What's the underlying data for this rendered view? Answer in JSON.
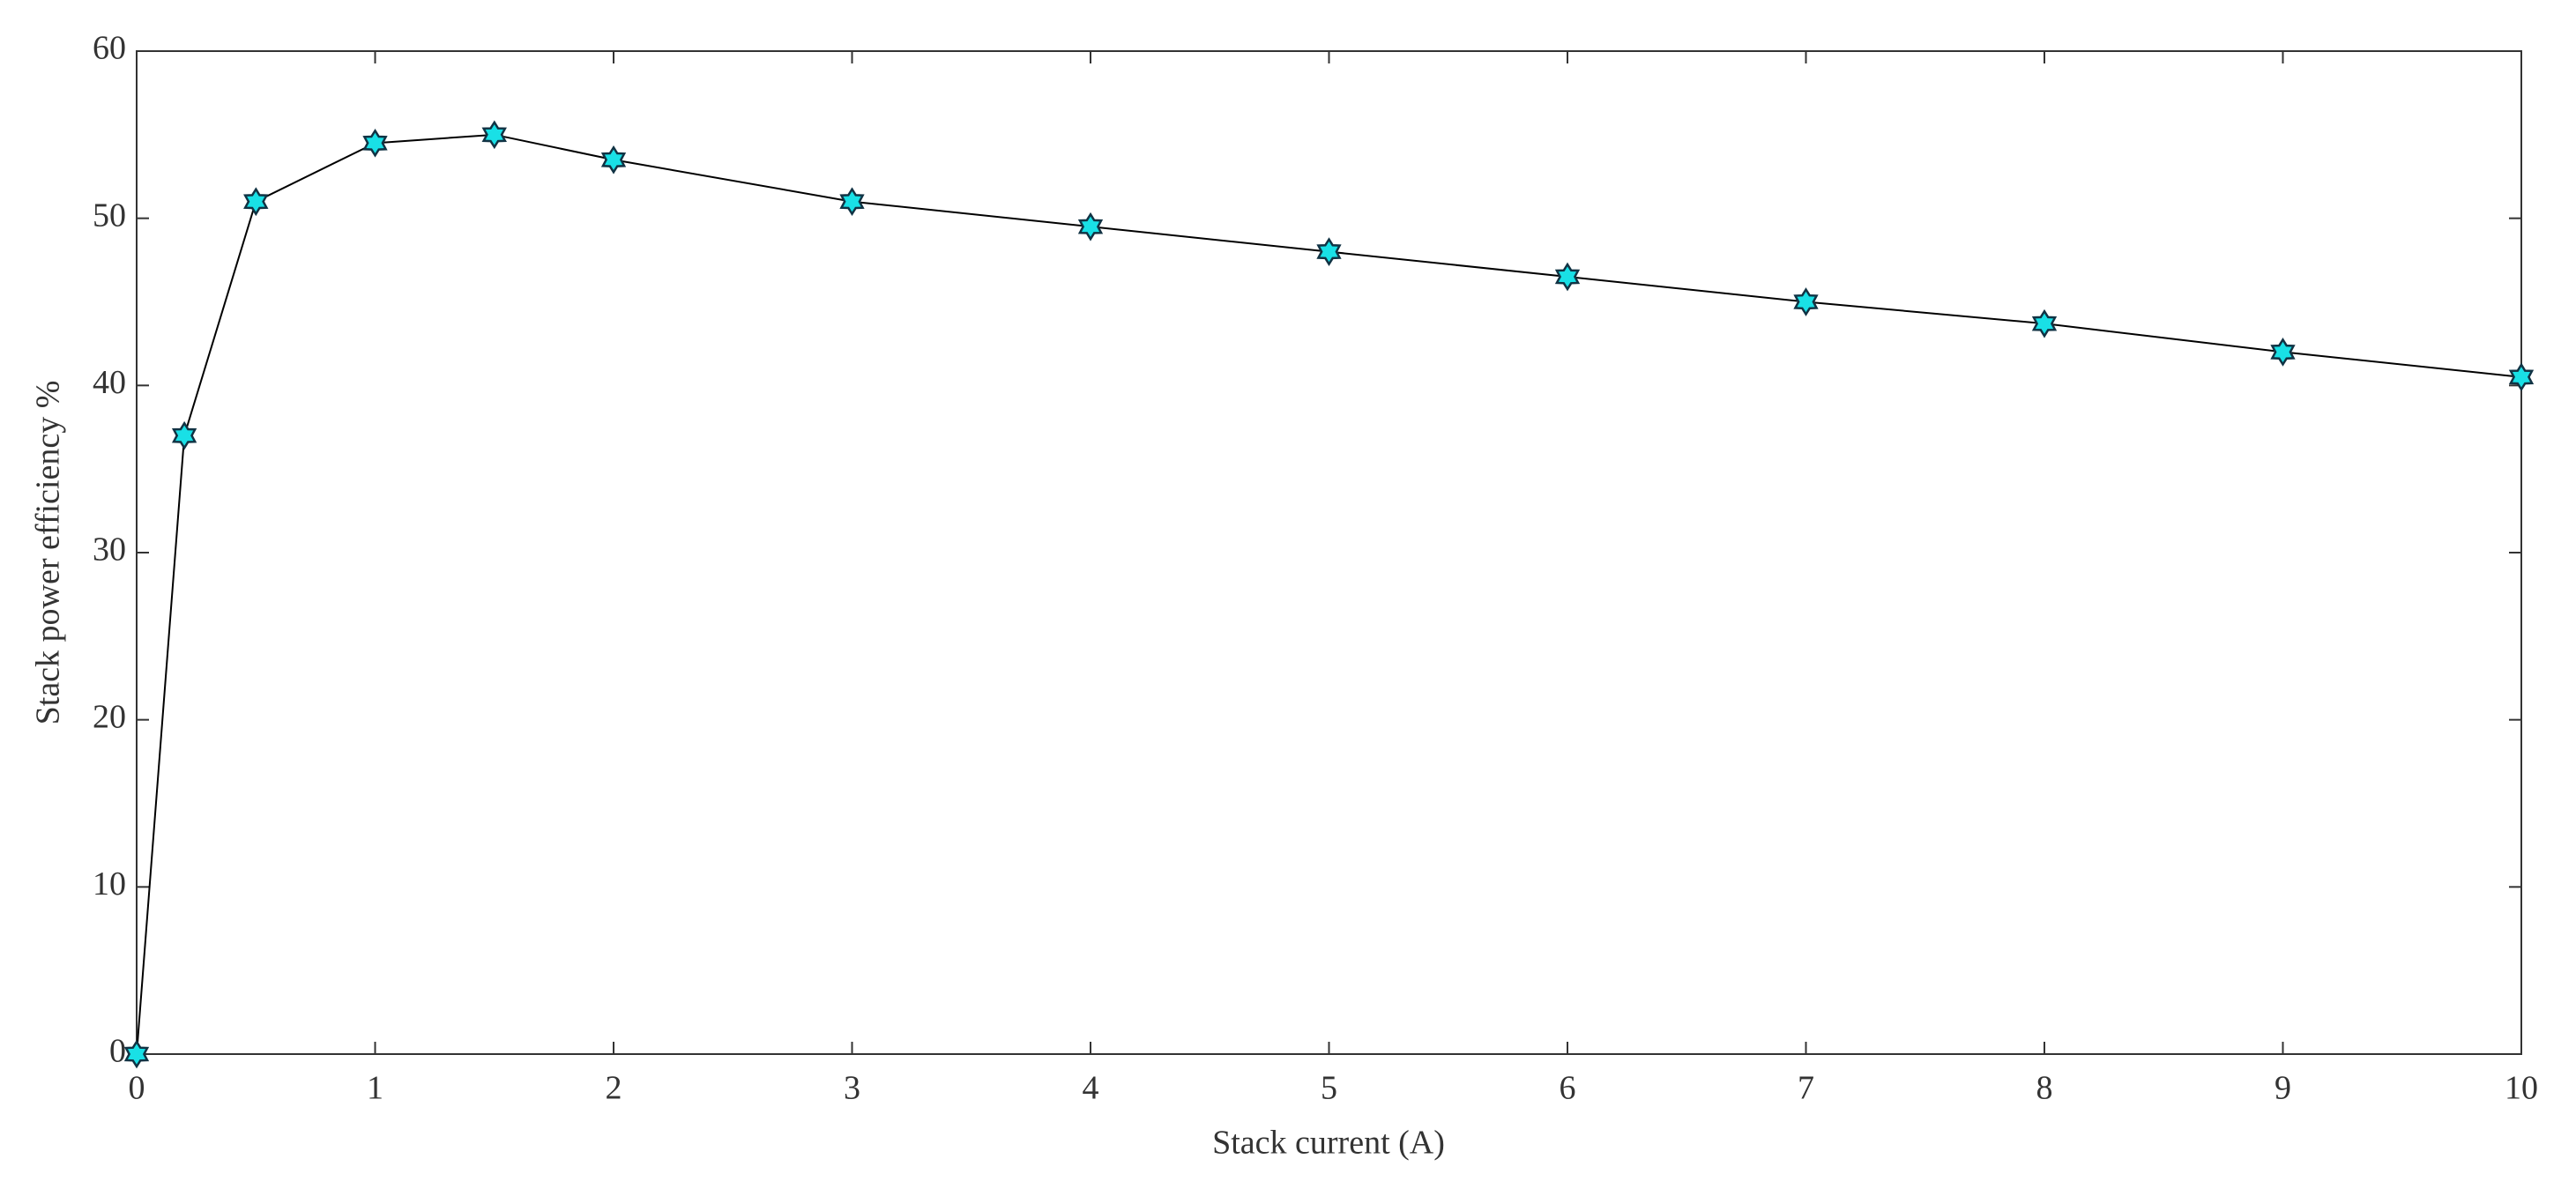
{
  "chart_data": {
    "type": "line",
    "xlabel": "Stack current (A)",
    "ylabel": "Stack power efficiency %",
    "x": [
      0,
      0.2,
      0.5,
      1,
      1.5,
      2,
      3,
      4,
      5,
      6,
      7,
      8,
      9,
      10
    ],
    "series": [
      {
        "values": [
          0,
          37,
          51,
          54.5,
          55,
          53.5,
          51,
          49.5,
          48,
          46.5,
          45,
          43.7,
          42,
          40.5
        ],
        "color": "#000000",
        "marker_color": "#19e0e6"
      }
    ],
    "xlim": [
      0,
      10
    ],
    "xticks": [
      0,
      1,
      2,
      3,
      4,
      5,
      6,
      7,
      8,
      9,
      10
    ],
    "ylim": [
      0,
      60
    ],
    "yticks": [
      0,
      10,
      20,
      30,
      40,
      50,
      60
    ],
    "grid": false
  }
}
